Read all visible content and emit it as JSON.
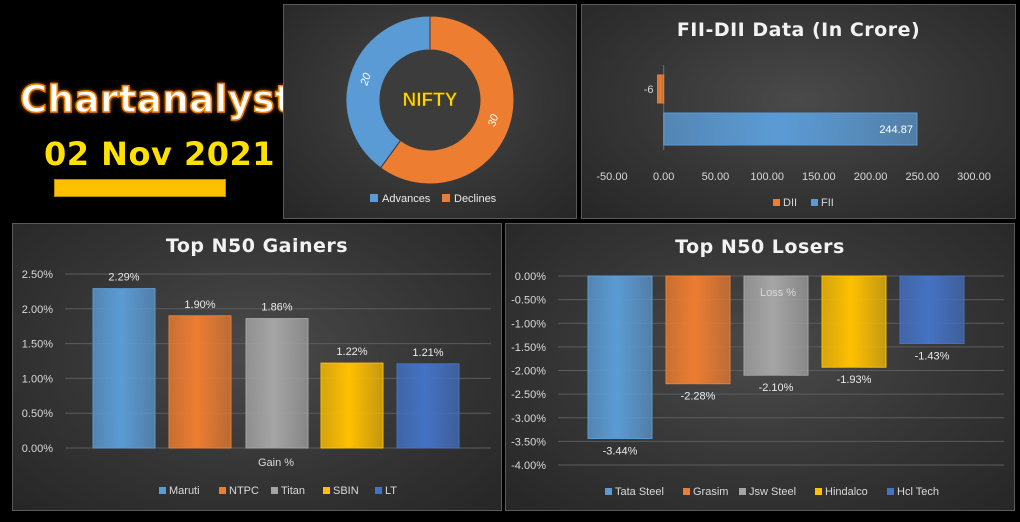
{
  "brand": {
    "title": "Chartanalystji",
    "date": "02 Nov 2021"
  },
  "colors": {
    "blue": "#5b9bd5",
    "orange": "#ed7d31",
    "gray": "#a5a5a5",
    "yellow": "#ffc000",
    "darkblue": "#4472c4",
    "nifty_label": "#ffd400"
  },
  "nifty": {
    "center_label": "NIFTY",
    "chart_data": {
      "type": "pie",
      "categories": [
        "Advances",
        "Declines"
      ],
      "values": [
        20,
        30
      ],
      "title": "NIFTY",
      "legend": "bottom"
    }
  },
  "fii_dii": {
    "title": "FII-DII Data  (In Crore)",
    "chart_data": {
      "type": "bar",
      "orientation": "horizontal",
      "categories": [
        "DII",
        "FII"
      ],
      "values": [
        -6,
        244.87
      ],
      "data_labels": [
        "-6",
        "244.87"
      ],
      "xlim": [
        -50,
        300
      ],
      "xticks": [
        "-50.00",
        "0.00",
        "50.00",
        "100.00",
        "150.00",
        "200.00",
        "250.00",
        "300.00"
      ],
      "legend": "bottom",
      "grid": false
    }
  },
  "gainers": {
    "title": "Top  N50  Gainers",
    "chart_data": {
      "type": "bar",
      "categories": [
        "Maruti",
        "NTPC",
        "Titan",
        "SBIN",
        "LT"
      ],
      "values": [
        2.29,
        1.9,
        1.86,
        1.22,
        1.21
      ],
      "data_labels": [
        "2.29%",
        "1.90%",
        "1.86%",
        "1.22%",
        "1.21%"
      ],
      "xlabel": "Gain %",
      "ylim": [
        0,
        2.5
      ],
      "yticks": [
        "0.00%",
        "0.50%",
        "1.00%",
        "1.50%",
        "2.00%",
        "2.50%"
      ],
      "legend": "bottom",
      "grid": true
    }
  },
  "losers": {
    "title": "Top  N50  Losers",
    "chart_data": {
      "type": "bar",
      "categories": [
        "Tata Steel",
        "Grasim",
        "Jsw Steel",
        "Hindalco",
        "Hcl Tech"
      ],
      "values": [
        -3.44,
        -2.28,
        -2.1,
        -1.93,
        -1.43
      ],
      "data_labels": [
        "-3.44%",
        "-2.28%",
        "-2.10%",
        "-1.93%",
        "-1.43%"
      ],
      "xlabel": "Loss %",
      "ylim": [
        -4.0,
        0.0
      ],
      "yticks": [
        "0.00%",
        "-0.50%",
        "-1.00%",
        "-1.50%",
        "-2.00%",
        "-2.50%",
        "-3.00%",
        "-3.50%",
        "-4.00%"
      ],
      "legend": "bottom",
      "grid": true
    }
  }
}
